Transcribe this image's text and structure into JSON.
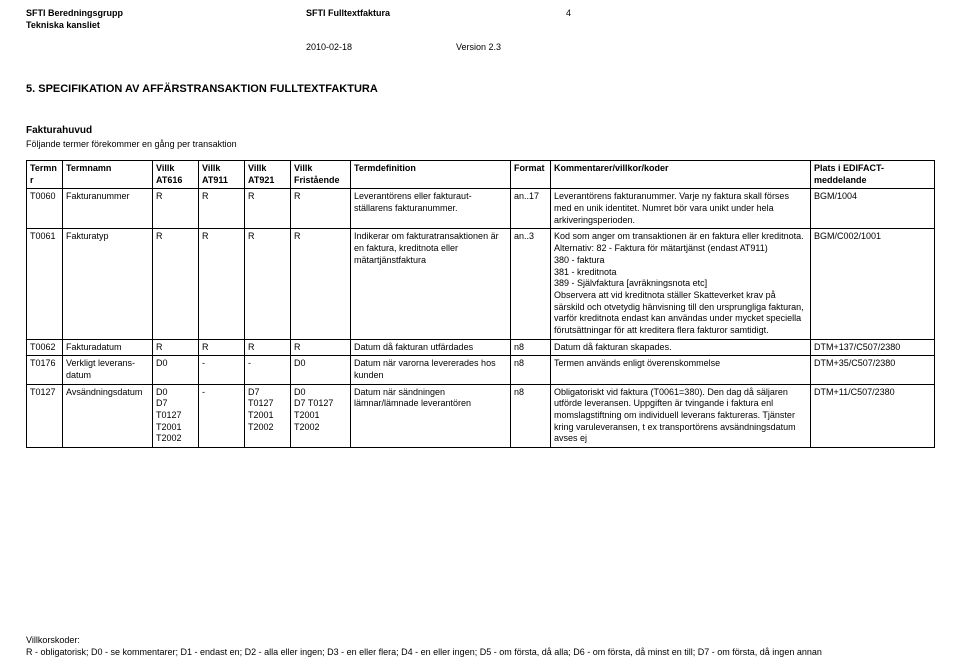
{
  "header": {
    "org_line1": "SFTI Beredningsgrupp",
    "org_line2": "Tekniska kansliet",
    "center_title": "SFTI Fulltextfaktura",
    "date": "2010-02-18",
    "version": "Version 2.3",
    "page_number": "4"
  },
  "section": {
    "title": "5.    SPECIFIKATION AV AFFÄRSTRANSAKTION FULLTEXTFAKTURA",
    "sub_heading": "Fakturahuvud",
    "sub_note": "Följande termer förekommer en gång per transaktion"
  },
  "table": {
    "headers": {
      "termnr": "Termnr",
      "termnamn": "Termnamn",
      "villk_at616_a": "Villk",
      "villk_at616_b": "AT616",
      "villk_at911_a": "Villk",
      "villk_at911_b": "AT911",
      "villk_at921_a": "Villk",
      "villk_at921_b": "AT921",
      "villk_fri_a": "Villk",
      "villk_fri_b": "Fristående",
      "termdef": "Termdefinition",
      "format": "Format",
      "kommentarer": "Kommentarer/villkor/koder",
      "plats": "Plats i EDIFACT-meddelande"
    },
    "rows": [
      {
        "termnr": "T0060",
        "termnamn": "Fakturanummer",
        "v616": "R",
        "v911": "R",
        "v921": "R",
        "vfri": "R",
        "termdef": "Leverantörens eller fakturaut-ställarens fakturanummer.",
        "format": "an..17",
        "kommentarer": "Leverantörens fakturanummer. Varje ny faktura skall förses med en unik identitet. Numret bör vara unikt under hela arkiveringsperioden.",
        "plats": "BGM/1004"
      },
      {
        "termnr": "T0061",
        "termnamn": "Fakturatyp",
        "v616": "R",
        "v911": "R",
        "v921": "R",
        "vfri": "R",
        "termdef": "Indikerar om fakturatransaktionen är en faktura, kreditnota eller mätartjänstfaktura",
        "format": "an..3",
        "kommentarer": "Kod som anger om transaktionen är en faktura eller kreditnota. Alternativ: 82 - Faktura för mätartjänst (endast AT911)\n380 - faktura\n381 - kreditnota\n389 - Självfaktura [avräkningsnota etc]\nObservera att vid kreditnota ställer Skatteverket krav på särskild och otvetydig hänvisning till den ursprungliga fakturan, varför kreditnota endast kan användas under mycket speciella förutsättningar för att kreditera flera fakturor samtidigt.",
        "plats": "BGM/C002/1001"
      },
      {
        "termnr": "T0062",
        "termnamn": "Fakturadatum",
        "v616": "R",
        "v911": "R",
        "v921": "R",
        "vfri": "R",
        "termdef": "Datum då fakturan utfärdades",
        "format": "n8",
        "kommentarer": "Datum då fakturan skapades.",
        "plats": "DTM+137/C507/2380"
      },
      {
        "termnr": "T0176",
        "termnamn": "Verkligt leverans-datum",
        "v616": "D0",
        "v911": "-",
        "v921": "-",
        "vfri": "D0",
        "termdef": "Datum när varorna levererades hos kunden",
        "format": "n8",
        "kommentarer": "Termen används enligt överenskommelse",
        "plats": "DTM+35/C507/2380"
      },
      {
        "termnr": "T0127",
        "termnamn": "Avsändningsdatum",
        "v616": "D0\nD7 T0127\nT2001\nT2002",
        "v911": "-",
        "v921": "D7 T0127\nT2001\nT2002",
        "vfri": "D0\nD7 T0127\nT2001\nT2002",
        "termdef": "Datum när sändningen lämnar/lämnade leverantören",
        "format": "n8",
        "kommentarer": "Obligatoriskt vid faktura (T0061=380). Den dag då säljaren utförde leveransen. Uppgiften är tvingande i faktura enl momslagstiftning om individuell leverans faktureras. Tjänster kring varuleveransen, t ex transportörens avsändningsdatum avses ej",
        "plats": "DTM+11/C507/2380"
      }
    ]
  },
  "footer": {
    "title": "Villkorskoder:",
    "text": "R - obligatorisk; D0 - se kommentarer; D1 - endast en; D2 - alla eller ingen; D3 - en eller flera; D4 - en eller ingen; D5 - om första, då alla; D6 - om första, då minst en till; D7 - om första, då ingen annan"
  }
}
